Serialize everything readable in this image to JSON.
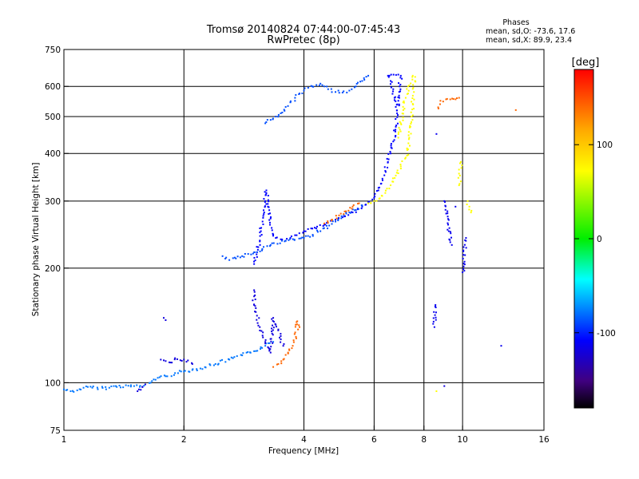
{
  "chart_data": {
    "type": "scatter",
    "title": "Tromsø 20140824 07:44:00-07:45:43",
    "subtitle": "RwPretec (8p)",
    "xlabel": "Frequency [MHz]",
    "ylabel": "Stationary phase Virtual Height [km]",
    "x_scale": "log",
    "y_scale": "log",
    "xlim": [
      1,
      16
    ],
    "ylim": [
      75,
      750
    ],
    "x_ticks": [
      1,
      2,
      4,
      6,
      8,
      10,
      16
    ],
    "y_ticks": [
      75,
      100,
      200,
      300,
      400,
      500,
      600,
      750
    ],
    "grid": true,
    "phase_stats": {
      "heading": "Phases",
      "line_o": "mean, sd,O: -73.6, 17.6",
      "line_x": "mean, sd,X:  89.9, 23.4"
    },
    "colorbar": {
      "label": "[deg]",
      "range": [
        -180,
        180
      ],
      "ticks": [
        100,
        0,
        -100
      ],
      "colormap": "rainbow"
    },
    "series": [
      {
        "phase_deg": -80,
        "points": [
          [
            1.0,
            96
          ],
          [
            1.04,
            95
          ],
          [
            1.08,
            95.5
          ],
          [
            1.12,
            97
          ],
          [
            1.3,
            97
          ],
          [
            1.35,
            98
          ],
          [
            1.5,
            98
          ],
          [
            1.55,
            97.5
          ],
          [
            1.6,
            99
          ],
          [
            1.65,
            100
          ],
          [
            1.68,
            102
          ],
          [
            1.72,
            103
          ],
          [
            1.8,
            104
          ],
          [
            1.9,
            106
          ],
          [
            2.0,
            107
          ],
          [
            2.1,
            108
          ],
          [
            2.2,
            109
          ],
          [
            2.4,
            112
          ],
          [
            2.6,
            115
          ],
          [
            2.8,
            118
          ],
          [
            3.0,
            121
          ],
          [
            3.2,
            125
          ],
          [
            3.35,
            128
          ]
        ]
      },
      {
        "phase_deg": -120,
        "points": [
          [
            1.53,
            95
          ],
          [
            1.6,
            99
          ],
          [
            1.78,
            148
          ],
          [
            1.8,
            146
          ],
          [
            1.75,
            115
          ],
          [
            1.8,
            114
          ],
          [
            1.85,
            113
          ],
          [
            1.9,
            116
          ],
          [
            2.0,
            115
          ],
          [
            2.1,
            112
          ],
          [
            3.0,
            175
          ],
          [
            3.0,
            160
          ],
          [
            3.05,
            150
          ],
          [
            3.1,
            140
          ],
          [
            3.15,
            133
          ],
          [
            3.2,
            128
          ],
          [
            3.25,
            124
          ],
          [
            3.3,
            120
          ],
          [
            3.35,
            148
          ],
          [
            3.4,
            142
          ],
          [
            3.45,
            138
          ],
          [
            3.5,
            130
          ],
          [
            3.55,
            125
          ],
          [
            9.0,
            98
          ]
        ]
      },
      {
        "phase_deg": -110,
        "points": [
          [
            3.0,
            205
          ],
          [
            3.05,
            220
          ],
          [
            3.1,
            235
          ],
          [
            3.12,
            250
          ],
          [
            3.15,
            265
          ],
          [
            3.18,
            280
          ],
          [
            3.2,
            300
          ],
          [
            3.22,
            320
          ],
          [
            3.25,
            290
          ],
          [
            3.3,
            270
          ],
          [
            3.32,
            255
          ],
          [
            3.35,
            245
          ],
          [
            3.4,
            240
          ],
          [
            3.5,
            238
          ],
          [
            3.6,
            236
          ],
          [
            3.7,
            240
          ],
          [
            3.8,
            244
          ],
          [
            4.0,
            250
          ],
          [
            4.2,
            254
          ],
          [
            4.5,
            260
          ],
          [
            4.8,
            268
          ],
          [
            5.0,
            272
          ],
          [
            5.3,
            280
          ],
          [
            5.6,
            290
          ],
          [
            5.8,
            298
          ],
          [
            6.0,
            306
          ],
          [
            6.15,
            320
          ],
          [
            6.3,
            340
          ],
          [
            6.4,
            360
          ],
          [
            6.5,
            380
          ],
          [
            6.6,
            400
          ],
          [
            6.7,
            430
          ],
          [
            6.8,
            470
          ],
          [
            6.85,
            510
          ],
          [
            6.9,
            550
          ],
          [
            6.95,
            600
          ],
          [
            7.0,
            640
          ],
          [
            6.5,
            640
          ],
          [
            6.6,
            620
          ],
          [
            6.7,
            590
          ],
          [
            6.75,
            560
          ],
          [
            6.8,
            530
          ]
        ]
      },
      {
        "phase_deg": -90,
        "points": [
          [
            3.2,
            480
          ],
          [
            3.3,
            490
          ],
          [
            3.4,
            500
          ],
          [
            3.5,
            510
          ],
          [
            3.6,
            530
          ],
          [
            3.7,
            545
          ],
          [
            3.8,
            560
          ],
          [
            3.9,
            575
          ],
          [
            4.0,
            585
          ],
          [
            4.1,
            595
          ],
          [
            4.2,
            600
          ],
          [
            4.3,
            605
          ],
          [
            4.4,
            610
          ],
          [
            4.5,
            600
          ],
          [
            4.6,
            590
          ],
          [
            4.8,
            580
          ],
          [
            5.0,
            578
          ],
          [
            5.2,
            585
          ],
          [
            5.4,
            600
          ],
          [
            5.6,
            620
          ],
          [
            5.8,
            640
          ],
          [
            2.5,
            215
          ],
          [
            2.6,
            210
          ],
          [
            2.7,
            212
          ],
          [
            2.8,
            215
          ],
          [
            3.0,
            220
          ],
          [
            3.3,
            230
          ],
          [
            3.6,
            236
          ],
          [
            4.0,
            240
          ],
          [
            4.4,
            250
          ],
          [
            4.8,
            265
          ],
          [
            5.2,
            280
          ],
          [
            5.6,
            292
          ]
        ]
      },
      {
        "phase_deg": 90,
        "points": [
          [
            5.8,
            296
          ],
          [
            6.0,
            300
          ],
          [
            6.2,
            305
          ],
          [
            6.4,
            315
          ],
          [
            6.6,
            330
          ],
          [
            6.8,
            350
          ],
          [
            7.0,
            370
          ],
          [
            7.2,
            390
          ],
          [
            7.3,
            410
          ],
          [
            7.35,
            440
          ],
          [
            7.4,
            470
          ],
          [
            7.45,
            500
          ],
          [
            7.5,
            540
          ],
          [
            7.55,
            580
          ],
          [
            7.6,
            620
          ],
          [
            7.5,
            640
          ],
          [
            7.3,
            600
          ],
          [
            7.2,
            560
          ],
          [
            7.1,
            520
          ],
          [
            7.0,
            480
          ],
          [
            6.9,
            440
          ],
          [
            9.8,
            330
          ],
          [
            9.85,
            350
          ],
          [
            9.9,
            380
          ],
          [
            10.3,
            300
          ],
          [
            10.4,
            290
          ],
          [
            10.5,
            280
          ],
          [
            8.6,
            95
          ]
        ]
      },
      {
        "phase_deg": 150,
        "points": [
          [
            4.5,
            262
          ],
          [
            4.7,
            268
          ],
          [
            4.9,
            275
          ],
          [
            5.1,
            282
          ],
          [
            5.3,
            290
          ],
          [
            5.5,
            296
          ],
          [
            3.35,
            110
          ],
          [
            3.45,
            112
          ],
          [
            3.55,
            115
          ],
          [
            3.65,
            120
          ],
          [
            3.75,
            125
          ],
          [
            3.82,
            132
          ],
          [
            3.85,
            145
          ],
          [
            3.9,
            140
          ],
          [
            8.7,
            525
          ],
          [
            8.8,
            550
          ],
          [
            9.8,
            560
          ],
          [
            13.6,
            520
          ]
        ]
      },
      {
        "phase_deg": -115,
        "points": [
          [
            8.5,
            140
          ],
          [
            8.55,
            160
          ],
          [
            8.6,
            450
          ],
          [
            9.0,
            300
          ],
          [
            9.2,
            260
          ],
          [
            9.4,
            230
          ],
          [
            9.6,
            290
          ],
          [
            10.0,
            195
          ],
          [
            10.2,
            240
          ],
          [
            12.5,
            125
          ]
        ]
      }
    ]
  }
}
